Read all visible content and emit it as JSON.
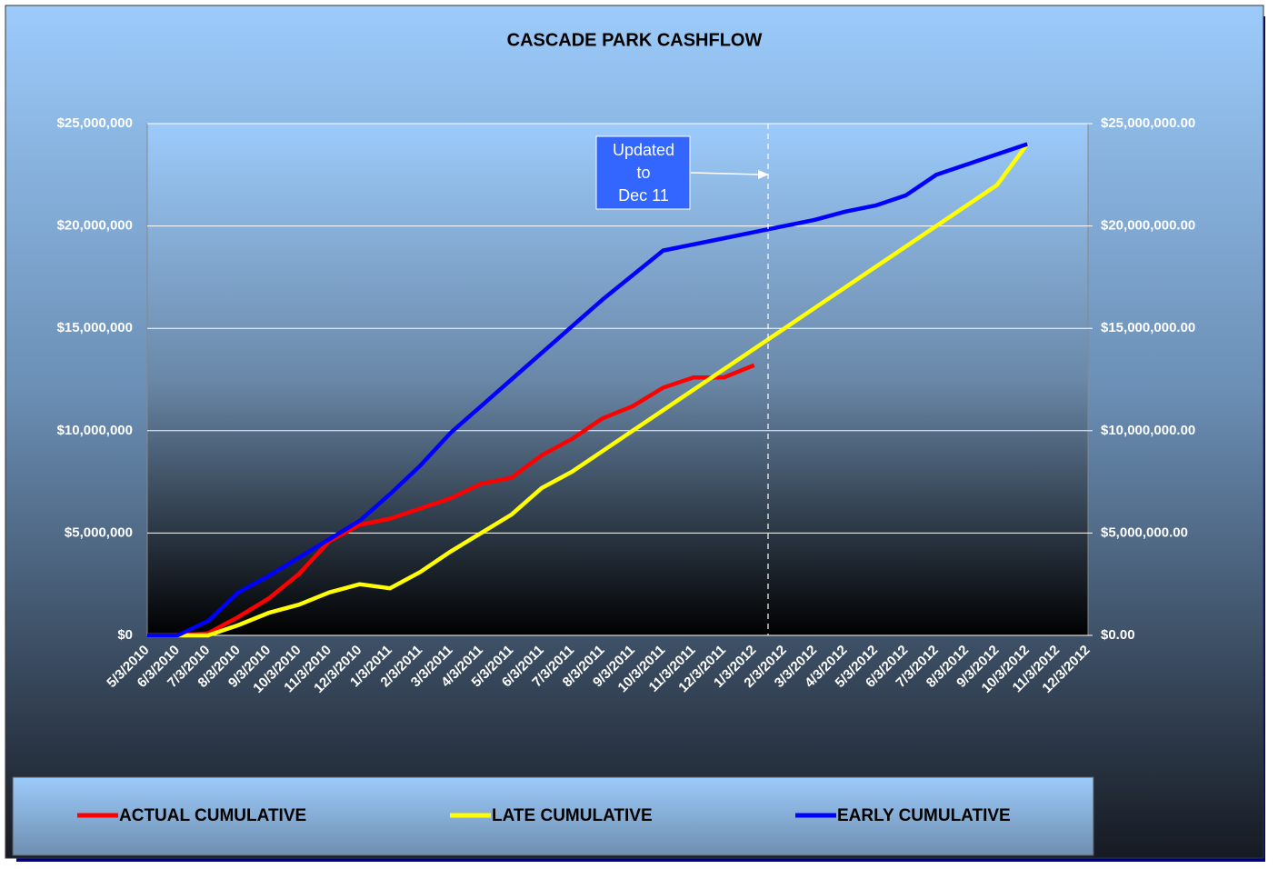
{
  "chart_data": {
    "type": "line",
    "title": "CASCADE PARK CASHFLOW",
    "annotation": [
      "Updated",
      "to",
      "Dec 11"
    ],
    "categories": [
      "5/3/2010",
      "6/3/2010",
      "7/3/2010",
      "8/3/2010",
      "9/3/2010",
      "10/3/2010",
      "11/3/2010",
      "12/3/2010",
      "1/3/2011",
      "2/3/2011",
      "3/3/2011",
      "4/3/2011",
      "5/3/2011",
      "6/3/2011",
      "7/3/2011",
      "8/3/2011",
      "9/3/2011",
      "10/3/2011",
      "11/3/2011",
      "12/3/2011",
      "1/3/2012",
      "2/3/2012",
      "3/3/2012",
      "4/3/2012",
      "5/3/2012",
      "6/3/2012",
      "7/3/2012",
      "8/3/2012",
      "9/3/2012",
      "10/3/2012",
      "11/3/2012",
      "12/3/2012"
    ],
    "series": [
      {
        "name": "ACTUAL CUMULATIVE",
        "color": "#ff0000",
        "values": [
          0,
          0,
          100000,
          900000,
          1800000,
          3000000,
          4600000,
          5400000,
          5700000,
          6200000,
          6700000,
          7400000,
          7700000,
          8800000,
          9600000,
          10600000,
          11200000,
          12100000,
          12600000,
          12600000,
          13200000,
          null,
          null,
          null,
          null,
          null,
          null,
          null,
          null,
          null,
          null,
          null
        ]
      },
      {
        "name": "LATE CUMULATIVE",
        "color": "#ffff00",
        "values": [
          0,
          0,
          0,
          500000,
          1100000,
          1500000,
          2100000,
          2500000,
          2300000,
          3100000,
          4100000,
          5000000,
          5900000,
          7200000,
          8000000,
          9000000,
          10000000,
          11000000,
          12000000,
          13000000,
          14000000,
          15000000,
          16000000,
          17000000,
          18000000,
          19000000,
          20000000,
          21000000,
          22000000,
          24000000,
          null,
          null
        ]
      },
      {
        "name": "EARLY CUMULATIVE",
        "color": "#0000ff",
        "values": [
          0,
          0,
          700000,
          2100000,
          2900000,
          3800000,
          4700000,
          5600000,
          6900000,
          8300000,
          9900000,
          11200000,
          12500000,
          13800000,
          15100000,
          16400000,
          17600000,
          18800000,
          19100000,
          19400000,
          19700000,
          20000000,
          20300000,
          20700000,
          21000000,
          21500000,
          22500000,
          23000000,
          23500000,
          24000000,
          null,
          null
        ]
      }
    ],
    "ylim": [
      0,
      25000000
    ],
    "yticks": [
      {
        "value": 0,
        "label": "$0"
      },
      {
        "value": 5000000,
        "label": "$5,000,000"
      },
      {
        "value": 10000000,
        "label": "$10,000,000"
      },
      {
        "value": 15000000,
        "label": "$15,000,000"
      },
      {
        "value": 20000000,
        "label": "$20,000,000"
      },
      {
        "value": 25000000,
        "label": "$25,000,000"
      }
    ],
    "y2lim": [
      0,
      25000000
    ],
    "y2ticks": [
      {
        "value": 0,
        "label": "$0.00"
      },
      {
        "value": 5000000,
        "label": "$5,000,000.00"
      },
      {
        "value": 10000000,
        "label": "$10,000,000.00"
      },
      {
        "value": 15000000,
        "label": "$15,000,000.00"
      },
      {
        "value": 20000000,
        "label": "$20,000,000.00"
      },
      {
        "value": 25000000,
        "label": "$25,000,000.00"
      }
    ],
    "grid": true
  }
}
